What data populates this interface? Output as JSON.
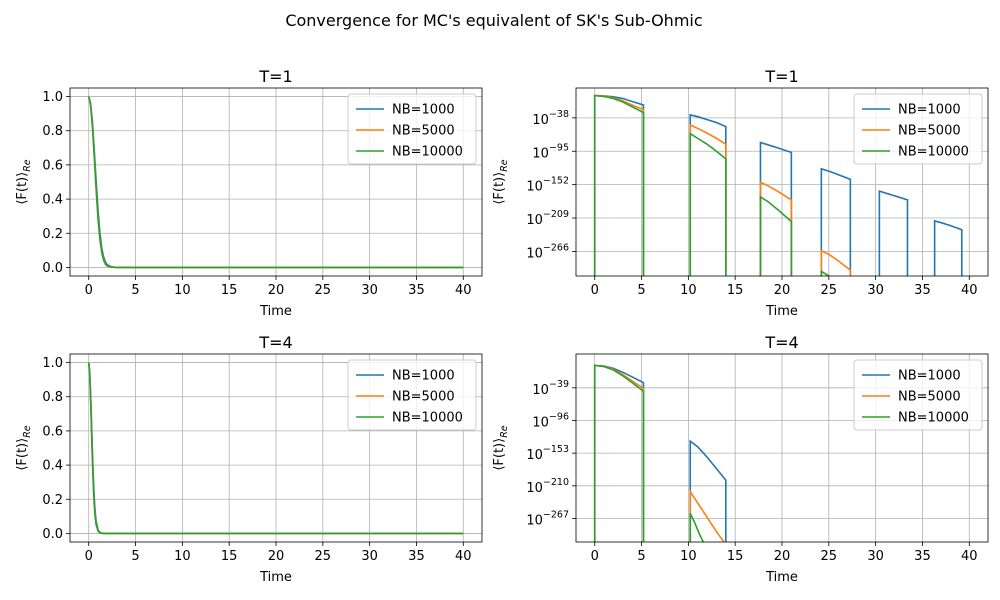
{
  "figure": {
    "suptitle": "Convergence for MC's equivalent of SK's Sub-Ohmic"
  },
  "colors": {
    "NB=1000": "#1f77b4",
    "NB=5000": "#ff7f0e",
    "NB=10000": "#2ca02c",
    "grid": "#b0b0b0"
  },
  "chart_data": [
    {
      "type": "line",
      "title": "T=1",
      "xlabel": "Time",
      "ylabel": "⟨F(t)⟩_Re",
      "scale": "linear",
      "xlim": [
        -2,
        42
      ],
      "ylim": [
        -0.05,
        1.05
      ],
      "xticks": [
        0,
        5,
        10,
        15,
        20,
        25,
        30,
        35,
        40
      ],
      "yticks": [
        0.0,
        0.2,
        0.4,
        0.6,
        0.8,
        1.0
      ],
      "ytick_labels": [
        "0.0",
        "0.2",
        "0.4",
        "0.6",
        "0.8",
        "1.0"
      ],
      "grid": true,
      "legend": "top-right",
      "series": [
        {
          "name": "NB=1000",
          "x": [
            0,
            0.2,
            0.4,
            0.6,
            0.8,
            1.0,
            1.2,
            1.4,
            1.6,
            1.8,
            2.0,
            2.4,
            2.8,
            3.5,
            40
          ],
          "y": [
            1.0,
            0.96,
            0.85,
            0.68,
            0.5,
            0.33,
            0.2,
            0.11,
            0.06,
            0.03,
            0.015,
            0.004,
            0.001,
            0.0,
            0.0
          ]
        },
        {
          "name": "NB=5000",
          "x": [
            0,
            0.2,
            0.4,
            0.6,
            0.8,
            1.0,
            1.2,
            1.4,
            1.6,
            1.8,
            2.0,
            2.4,
            3.0,
            40
          ],
          "y": [
            1.0,
            0.95,
            0.83,
            0.65,
            0.46,
            0.29,
            0.17,
            0.09,
            0.045,
            0.02,
            0.009,
            0.002,
            0.0,
            0.0
          ]
        },
        {
          "name": "NB=10000",
          "x": [
            0,
            0.2,
            0.4,
            0.6,
            0.8,
            1.0,
            1.2,
            1.4,
            1.6,
            1.8,
            2.0,
            2.4,
            3.0,
            40
          ],
          "y": [
            1.0,
            0.95,
            0.82,
            0.64,
            0.45,
            0.28,
            0.16,
            0.085,
            0.04,
            0.018,
            0.008,
            0.002,
            0.0,
            0.0
          ]
        }
      ]
    },
    {
      "type": "line",
      "title": "T=1",
      "xlabel": "Time",
      "ylabel": "⟨F(t)⟩_Re",
      "scale": "log10",
      "xlim": [
        -2,
        42
      ],
      "ylim_exp": [
        -308,
        13
      ],
      "xticks": [
        0,
        5,
        10,
        15,
        20,
        25,
        30,
        35,
        40
      ],
      "ytick_exps": [
        -38,
        -95,
        -152,
        -209,
        -266
      ],
      "grid": true,
      "legend": "top-right",
      "series": [
        {
          "name": "NB=1000",
          "segments": [
            {
              "x": [
                0,
                1,
                2,
                3,
                4,
                5.2
              ],
              "y_exp": [
                0,
                -0.5,
                -2,
                -5,
                -10,
                -16
              ]
            },
            {
              "x": [
                10.2,
                11,
                12,
                13,
                14
              ],
              "y_exp": [
                -33,
                -36,
                -41,
                -46,
                -53
              ]
            },
            {
              "x": [
                17.7,
                18.5,
                19.5,
                21
              ],
              "y_exp": [
                -80,
                -84,
                -89,
                -97
              ]
            },
            {
              "x": [
                24.2,
                25,
                26,
                27.3
              ],
              "y_exp": [
                -125,
                -129,
                -135,
                -143
              ]
            },
            {
              "x": [
                30.4,
                31,
                32,
                33.4
              ],
              "y_exp": [
                -163,
                -166,
                -171,
                -178
              ]
            },
            {
              "x": [
                36.3,
                37,
                38,
                39.2
              ],
              "y_exp": [
                -214,
                -217,
                -222,
                -229
              ]
            }
          ]
        },
        {
          "name": "NB=5000",
          "segments": [
            {
              "x": [
                0,
                1,
                2,
                3,
                4,
                5.2
              ],
              "y_exp": [
                0,
                -1,
                -4,
                -9,
                -16,
                -24
              ]
            },
            {
              "x": [
                10.2,
                11,
                12,
                13,
                14
              ],
              "y_exp": [
                -50,
                -56,
                -64,
                -73,
                -83
              ]
            },
            {
              "x": [
                17.7,
                18.5,
                19.5,
                21
              ],
              "y_exp": [
                -148,
                -154,
                -163,
                -178
              ]
            },
            {
              "x": [
                24.2,
                25,
                26,
                27.3
              ],
              "y_exp": [
                -265,
                -271,
                -282,
                -298
              ]
            }
          ]
        },
        {
          "name": "NB=10000",
          "segments": [
            {
              "x": [
                0,
                1,
                2,
                3,
                4,
                5.2
              ],
              "y_exp": [
                0,
                -1.5,
                -5,
                -11,
                -19,
                -29
              ]
            },
            {
              "x": [
                10.2,
                11,
                12,
                13,
                14
              ],
              "y_exp": [
                -65,
                -73,
                -83,
                -95,
                -108
              ]
            },
            {
              "x": [
                17.7,
                18.5,
                19.5,
                21
              ],
              "y_exp": [
                -173,
                -181,
                -194,
                -215
              ]
            },
            {
              "x": [
                24.2,
                24.6,
                25
              ],
              "y_exp": [
                -300,
                -304,
                -308
              ]
            }
          ]
        }
      ]
    },
    {
      "type": "line",
      "title": "T=4",
      "xlabel": "Time",
      "ylabel": "⟨F(t)⟩_Re",
      "scale": "linear",
      "xlim": [
        -2,
        42
      ],
      "ylim": [
        -0.05,
        1.05
      ],
      "xticks": [
        0,
        5,
        10,
        15,
        20,
        25,
        30,
        35,
        40
      ],
      "yticks": [
        0.0,
        0.2,
        0.4,
        0.6,
        0.8,
        1.0
      ],
      "ytick_labels": [
        "0.0",
        "0.2",
        "0.4",
        "0.6",
        "0.8",
        "1.0"
      ],
      "grid": true,
      "legend": "top-right",
      "series": [
        {
          "name": "NB=1000",
          "x": [
            0,
            0.1,
            0.2,
            0.3,
            0.4,
            0.5,
            0.6,
            0.7,
            0.8,
            1.0,
            1.2,
            1.5,
            2.0,
            40
          ],
          "y": [
            1.0,
            0.95,
            0.82,
            0.65,
            0.47,
            0.32,
            0.2,
            0.12,
            0.07,
            0.02,
            0.006,
            0.001,
            0.0,
            0.0
          ]
        },
        {
          "name": "NB=5000",
          "x": [
            0,
            0.1,
            0.2,
            0.3,
            0.4,
            0.5,
            0.6,
            0.7,
            0.8,
            1.0,
            1.2,
            1.5,
            2.0,
            40
          ],
          "y": [
            1.0,
            0.94,
            0.8,
            0.61,
            0.43,
            0.28,
            0.17,
            0.1,
            0.055,
            0.015,
            0.004,
            0.0005,
            0.0,
            0.0
          ]
        },
        {
          "name": "NB=10000",
          "x": [
            0,
            0.1,
            0.2,
            0.3,
            0.4,
            0.5,
            0.6,
            0.7,
            0.8,
            1.0,
            1.2,
            1.5,
            2.0,
            40
          ],
          "y": [
            1.0,
            0.94,
            0.79,
            0.6,
            0.42,
            0.27,
            0.16,
            0.09,
            0.05,
            0.013,
            0.003,
            0.0004,
            0.0,
            0.0
          ]
        }
      ]
    },
    {
      "type": "line",
      "title": "T=4",
      "xlabel": "Time",
      "ylabel": "⟨F(t)⟩_Re",
      "scale": "log10",
      "xlim": [
        -2,
        42
      ],
      "ylim_exp": [
        -308,
        20
      ],
      "xticks": [
        0,
        5,
        10,
        15,
        20,
        25,
        30,
        35,
        40
      ],
      "ytick_exps": [
        -39,
        -96,
        -153,
        -210,
        -267
      ],
      "grid": true,
      "legend": "top-right",
      "series": [
        {
          "name": "NB=1000",
          "segments": [
            {
              "x": [
                0,
                1,
                2,
                3,
                4,
                5.2
              ],
              "y_exp": [
                0,
                -1,
                -5,
                -12,
                -20,
                -30
              ]
            },
            {
              "x": [
                10.2,
                11,
                12,
                13,
                14
              ],
              "y_exp": [
                -132,
                -142,
                -160,
                -180,
                -200
              ]
            }
          ]
        },
        {
          "name": "NB=5000",
          "segments": [
            {
              "x": [
                0,
                1,
                2,
                3,
                4,
                5.2
              ],
              "y_exp": [
                0,
                -1.5,
                -7,
                -16,
                -27,
                -40
              ]
            },
            {
              "x": [
                10.2,
                11,
                12,
                13,
                13.8
              ],
              "y_exp": [
                -220,
                -240,
                -265,
                -290,
                -308
              ]
            }
          ]
        },
        {
          "name": "NB=10000",
          "segments": [
            {
              "x": [
                0,
                1,
                2,
                3,
                4,
                5.2
              ],
              "y_exp": [
                0,
                -2,
                -8,
                -18,
                -30,
                -45
              ]
            },
            {
              "x": [
                10.2,
                10.7,
                11.2,
                11.6
              ],
              "y_exp": [
                -258,
                -275,
                -295,
                -308
              ]
            }
          ]
        }
      ]
    }
  ]
}
